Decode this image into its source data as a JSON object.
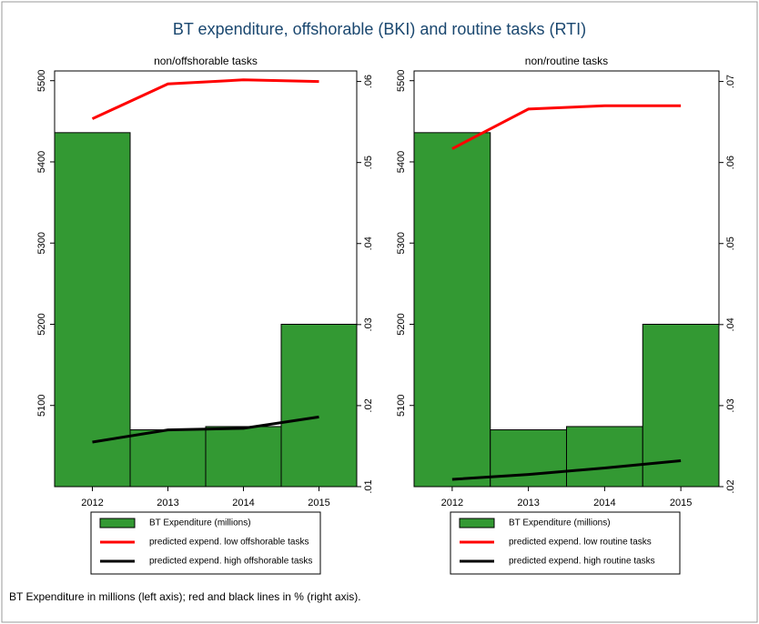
{
  "title": "BT expenditure, offshorable (BKI) and routine tasks (RTI)",
  "note": "BT Expenditure in millions (left axis); red and black lines in % (right axis).",
  "chart_data": [
    {
      "type": "bar",
      "title": "non/offshorable tasks",
      "categories": [
        "2012",
        "2013",
        "2014",
        "2015"
      ],
      "series": [
        {
          "name": "BT Expenditure (millions)",
          "color": "#339933",
          "values": [
            5436,
            5070,
            5074,
            5200
          ]
        },
        {
          "name": "predicted expend. low  offshorable tasks",
          "color": "#ff0000",
          "axis": "y2",
          "values": [
            0.0554,
            0.0597,
            0.0602,
            0.06
          ]
        },
        {
          "name": "predicted expend. high offshorable tasks",
          "color": "#000000",
          "axis": "y2",
          "values": [
            0.0155,
            0.017,
            0.0172,
            0.0186
          ]
        }
      ],
      "ylim": [
        5000,
        5512
      ],
      "yticks": [
        5100,
        5200,
        5300,
        5400,
        5500
      ],
      "y2lim": [
        0.01,
        0.0613
      ],
      "y2ticks": [
        {
          "value": 0.01,
          "label": ".01"
        },
        {
          "value": 0.02,
          "label": ".02"
        },
        {
          "value": 0.03,
          "label": ".03"
        },
        {
          "value": 0.04,
          "label": ".04"
        },
        {
          "value": 0.05,
          "label": ".05"
        },
        {
          "value": 0.06,
          "label": ".06"
        }
      ]
    },
    {
      "type": "bar",
      "title": "non/routine tasks",
      "categories": [
        "2012",
        "2013",
        "2014",
        "2015"
      ],
      "series": [
        {
          "name": "BT Expenditure (millions)",
          "color": "#339933",
          "values": [
            5436,
            5070,
            5074,
            5200
          ]
        },
        {
          "name": "predicted expend. low  routine tasks",
          "color": "#ff0000",
          "axis": "y2",
          "values": [
            0.0617,
            0.0666,
            0.067,
            0.067
          ]
        },
        {
          "name": "predicted expend. high routine tasks",
          "color": "#000000",
          "axis": "y2",
          "values": [
            0.0209,
            0.0215,
            0.0223,
            0.0232
          ]
        }
      ],
      "ylim": [
        5000,
        5512
      ],
      "yticks": [
        5100,
        5200,
        5300,
        5400,
        5500
      ],
      "y2lim": [
        0.02,
        0.0713
      ],
      "y2ticks": [
        {
          "value": 0.02,
          "label": ".02"
        },
        {
          "value": 0.03,
          "label": ".03"
        },
        {
          "value": 0.04,
          "label": ".04"
        },
        {
          "value": 0.05,
          "label": ".05"
        },
        {
          "value": 0.06,
          "label": ".06"
        },
        {
          "value": 0.07,
          "label": ".07"
        }
      ]
    }
  ]
}
